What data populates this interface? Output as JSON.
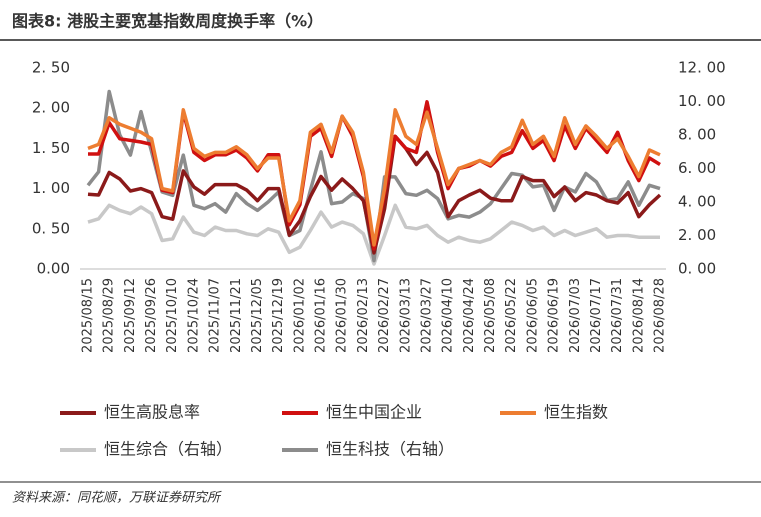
{
  "header": {
    "title": "图表8: 港股主要宽基指数周度换手率（%）"
  },
  "chart_data": {
    "type": "line",
    "categories": [
      "2025/08/15",
      null,
      "2025/08/29",
      null,
      "2025/09/12",
      null,
      "2025/09/26",
      null,
      "2025/10/10",
      null,
      "2025/10/24",
      null,
      "2025/11/07",
      null,
      "2025/11/21",
      null,
      "2025/12/05",
      null,
      "2025/12/19",
      null,
      "2026/01/02",
      null,
      "2026/01/16",
      null,
      "2026/01/30",
      null,
      "2026/02/13",
      null,
      "2026/02/27",
      null,
      "2026/03/13",
      null,
      "2026/03/27",
      null,
      "2026/04/10",
      null,
      "2026/04/24",
      null,
      "2026/05/08",
      null,
      "2026/05/22",
      null,
      "2026/06/05",
      null,
      "2026/06/19",
      null,
      "2026/07/03",
      null,
      "2026/07/17",
      null,
      "2026/07/31",
      null,
      "2026/08/14",
      null,
      "2026/08/28"
    ],
    "series": [
      {
        "name": "恒生高股息率",
        "color": "#8b1a1a",
        "values": [
          0.93,
          0.92,
          1.2,
          1.12,
          0.97,
          1.0,
          0.95,
          0.65,
          0.62,
          1.22,
          1.02,
          0.93,
          1.05,
          1.05,
          1.05,
          0.98,
          0.85,
          1.0,
          1.0,
          0.42,
          0.6,
          0.9,
          1.15,
          0.98,
          1.12,
          1.0,
          0.85,
          0.2,
          0.75,
          1.65,
          1.5,
          1.3,
          1.45,
          1.2,
          0.65,
          0.85,
          0.92,
          0.98,
          0.88,
          0.85,
          0.85,
          1.15,
          1.1,
          1.1,
          0.9,
          1.02,
          0.85,
          0.95,
          0.92,
          0.85,
          0.82,
          0.95,
          0.65,
          0.8,
          0.92
        ]
      },
      {
        "name": "恒生中国企业",
        "color": "#d01010",
        "values": [
          1.43,
          1.43,
          1.82,
          1.62,
          1.6,
          1.58,
          1.55,
          0.98,
          0.95,
          1.95,
          1.45,
          1.35,
          1.42,
          1.42,
          1.48,
          1.38,
          1.22,
          1.42,
          1.42,
          0.55,
          0.8,
          1.65,
          1.75,
          1.4,
          1.9,
          1.65,
          1.15,
          0.25,
          0.95,
          1.65,
          1.5,
          1.45,
          2.08,
          1.45,
          1.0,
          1.25,
          1.28,
          1.35,
          1.28,
          1.4,
          1.45,
          1.72,
          1.5,
          1.6,
          1.35,
          1.78,
          1.5,
          1.75,
          1.6,
          1.45,
          1.7,
          1.35,
          1.1,
          1.38,
          1.3
        ]
      },
      {
        "name": "恒生指数",
        "color": "#ed7d31",
        "values": [
          1.5,
          1.55,
          1.88,
          1.8,
          1.75,
          1.7,
          1.62,
          1.0,
          0.97,
          1.98,
          1.5,
          1.4,
          1.45,
          1.45,
          1.52,
          1.42,
          1.25,
          1.38,
          1.38,
          0.6,
          0.85,
          1.7,
          1.8,
          1.45,
          1.9,
          1.7,
          1.2,
          0.3,
          1.0,
          1.98,
          1.65,
          1.55,
          1.95,
          1.5,
          1.05,
          1.25,
          1.3,
          1.35,
          1.3,
          1.45,
          1.52,
          1.85,
          1.55,
          1.65,
          1.4,
          1.88,
          1.55,
          1.78,
          1.65,
          1.5,
          1.62,
          1.4,
          1.15,
          1.48,
          1.42
        ]
      },
      {
        "name": "恒生综合（右轴）",
        "color": "#c8c8c8",
        "axis": "y2",
        "values": [
          2.8,
          3.0,
          3.8,
          3.5,
          3.3,
          3.7,
          3.3,
          1.7,
          1.8,
          3.1,
          2.2,
          2.0,
          2.5,
          2.3,
          2.3,
          2.1,
          2.0,
          2.4,
          2.2,
          1.0,
          1.3,
          2.3,
          3.4,
          2.5,
          2.8,
          2.6,
          2.1,
          0.3,
          2.0,
          3.8,
          2.5,
          2.4,
          2.6,
          2.0,
          1.6,
          1.9,
          1.7,
          1.6,
          1.8,
          2.3,
          2.8,
          2.6,
          2.3,
          2.5,
          2.0,
          2.3,
          2.0,
          2.2,
          2.4,
          1.9,
          2.0,
          2.0,
          1.9,
          1.9,
          1.9
        ]
      },
      {
        "name": "恒生科技（右轴）",
        "color": "#8c8c8c",
        "axis": "y2",
        "values": [
          5.0,
          5.8,
          10.6,
          8.0,
          6.8,
          9.4,
          7.0,
          4.6,
          4.4,
          6.8,
          3.8,
          3.6,
          3.9,
          3.4,
          4.5,
          3.9,
          3.5,
          4.0,
          4.6,
          2.0,
          2.3,
          4.7,
          7.0,
          3.9,
          4.0,
          4.5,
          4.2,
          0.5,
          5.5,
          5.5,
          4.5,
          4.4,
          4.7,
          4.2,
          3.0,
          3.2,
          3.1,
          3.4,
          3.9,
          4.8,
          5.7,
          5.6,
          4.9,
          5.0,
          3.5,
          4.9,
          4.6,
          5.7,
          5.2,
          4.1,
          4.2,
          5.2,
          3.8,
          5.0,
          4.8
        ]
      }
    ],
    "ylim": [
      0,
      2.5
    ],
    "yticks": [
      {
        "value": 0,
        "label": "0.00"
      },
      {
        "value": 0.5,
        "label": "0. 50"
      },
      {
        "value": 1,
        "label": "1. 00"
      },
      {
        "value": 1.5,
        "label": "1. 50"
      },
      {
        "value": 2,
        "label": "2. 00"
      },
      {
        "value": 2.5,
        "label": "2. 50"
      }
    ],
    "y2lim": [
      0,
      12
    ],
    "y2ticks": [
      {
        "value": 0,
        "label": "0. 00"
      },
      {
        "value": 2,
        "label": "2. 00"
      },
      {
        "value": 4,
        "label": "4. 00"
      },
      {
        "value": 6,
        "label": "6. 00"
      },
      {
        "value": 8,
        "label": "8. 00"
      },
      {
        "value": 10,
        "label": "10. 00"
      },
      {
        "value": 12,
        "label": "12. 00"
      }
    ],
    "grid": false
  },
  "footer": {
    "source": "资料来源：同花顺，万联证券研究所"
  }
}
